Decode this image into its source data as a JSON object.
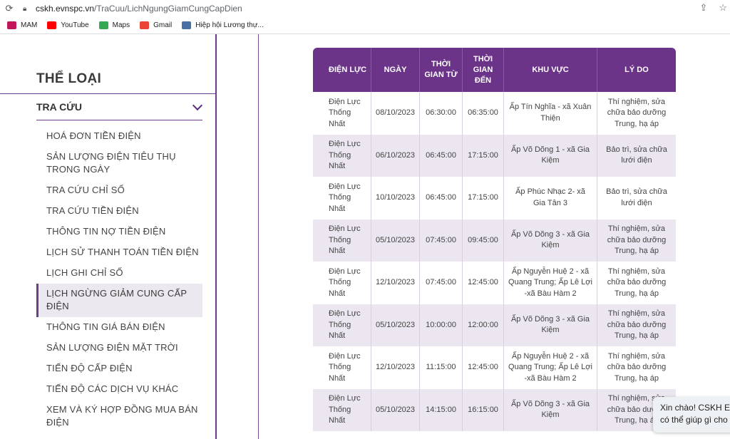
{
  "browser": {
    "url_host": "cskh.evnspc.vn",
    "url_path": "/TraCuu/LichNgungGiamCungCapDien",
    "bookmarks": [
      {
        "label": "MAM",
        "color": "#c2185b"
      },
      {
        "label": "YouTube",
        "color": "#ff0000"
      },
      {
        "label": "Maps",
        "color": "#34a853"
      },
      {
        "label": "Gmail",
        "color": "#ea4335"
      },
      {
        "label": "Hiệp hội Lương thự...",
        "color": "#4a6fa5"
      }
    ]
  },
  "sidebar": {
    "category_title": "THỂ LOẠI",
    "section_label": "TRA CỨU",
    "items": [
      "HOÁ ĐƠN TIỀN ĐIỆN",
      "SẢN LƯỢNG ĐIỆN TIÊU THỤ TRONG NGÀY",
      "TRA CỨU CHỈ SỐ",
      "TRA CỨU TIỀN ĐIỆN",
      "THÔNG TIN NỢ TIỀN ĐIỆN",
      "LỊCH SỬ THANH TOÁN TIỀN ĐIỆN",
      "LỊCH GHI CHỈ SỐ",
      "LỊCH NGỪNG GIẢM CUNG CẤP ĐIỆN",
      "THÔNG TIN GIÁ BÁN ĐIỆN",
      "SẢN LƯỢNG ĐIỆN MẶT TRỜI",
      "TIẾN ĐỘ CẤP ĐIỆN",
      "TIẾN ĐỘ CÁC DỊCH VỤ KHÁC",
      "XEM VÀ KÝ HỢP ĐỒNG MUA BÁN ĐIỆN"
    ],
    "active_index": 7
  },
  "table": {
    "headers": [
      "ĐIỆN LỰC",
      "NGÀY",
      "THỜI GIAN TỪ",
      "THỜI GIAN ĐẾN",
      "KHU VỰC",
      "LÝ DO"
    ],
    "rows": [
      [
        "Điện Lực Thống Nhất",
        "08/10/2023",
        "06:30:00",
        "06:35:00",
        "Ấp Tín Nghĩa - xã Xuân Thiện",
        "Thí nghiệm, sửa chữa bảo dưỡng Trung, hạ áp"
      ],
      [
        "Điện Lực Thống Nhất",
        "06/10/2023",
        "06:45:00",
        "17:15:00",
        "Ấp Võ Dõng 1 - xã Gia Kiệm",
        "Bảo trì, sửa chữa lưới điện"
      ],
      [
        "Điện Lực Thống Nhất",
        "10/10/2023",
        "06:45:00",
        "17:15:00",
        "Ấp Phúc Nhạc 2- xã Gia Tân 3",
        "Bảo trì, sửa chữa lưới điện"
      ],
      [
        "Điện Lực Thống Nhất",
        "05/10/2023",
        "07:45:00",
        "09:45:00",
        "Ấp Võ Dõng 3 - xã Gia Kiệm",
        "Thí nghiệm, sửa chữa bảo dưỡng Trung, hạ áp"
      ],
      [
        "Điện Lực Thống Nhất",
        "12/10/2023",
        "07:45:00",
        "12:45:00",
        "Ấp Nguyễn Huệ 2 - xã Quang Trung; Ấp Lê Lợi -xã Bàu Hàm 2",
        "Thí nghiệm, sửa chữa bảo dưỡng Trung, hạ áp"
      ],
      [
        "Điện Lực Thống Nhất",
        "05/10/2023",
        "10:00:00",
        "12:00:00",
        "Ấp Võ Dõng 3 - xã Gia Kiệm",
        "Thí nghiệm, sửa chữa bảo dưỡng Trung, hạ áp"
      ],
      [
        "Điện Lực Thống Nhất",
        "12/10/2023",
        "11:15:00",
        "12:45:00",
        "Ấp Nguyễn Huệ 2 - xã Quang Trung; Ấp Lê Lợi -xã Bàu Hàm 2",
        "Thí nghiệm, sửa chữa bảo dưỡng Trung, hạ áp"
      ],
      [
        "Điện Lực Thống Nhất",
        "05/10/2023",
        "14:15:00",
        "16:15:00",
        "Ấp Võ Dõng 3 - xã Gia Kiệm",
        "Thí nghiệm, sửa chữa bảo dưỡng Trung, hạ áp"
      ]
    ]
  },
  "chat": {
    "line1": "Xin chào! CSKH E",
    "line2": "có thể giúp gì cho"
  }
}
